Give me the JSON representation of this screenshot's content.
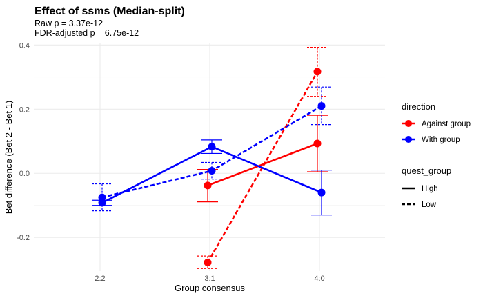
{
  "chart_data": {
    "type": "line",
    "title": "Effect of ssms (Median-split)",
    "subtitle_lines": [
      "Raw p = 3.37e-12",
      "FDR-adjusted p = 6.75e-12"
    ],
    "xlabel": "Group consensus",
    "ylabel": "Bet difference (Bet 2 - Bet 1)",
    "categories": [
      "2:2",
      "3:1",
      "4:0"
    ],
    "ylim": [
      -0.305,
      0.405
    ],
    "yticks": [
      -0.2,
      0.0,
      0.2,
      0.4
    ],
    "ytick_labels": [
      "-0.2",
      "0.0",
      "0.2",
      "0.4"
    ],
    "grid": true,
    "legend_position": "right",
    "legends": {
      "color": {
        "title": "direction",
        "entries": [
          "Against group",
          "With group"
        ]
      },
      "linetype": {
        "title": "quest_group",
        "entries": [
          "High",
          "Low"
        ]
      }
    },
    "colors": {
      "Against group": "#ff0000",
      "With group": "#0000ff"
    },
    "series": [
      {
        "direction": "Against group",
        "quest_group": "High",
        "values": [
          null,
          -0.038,
          0.093
        ],
        "error_low": [
          null,
          -0.089,
          0.005
        ],
        "error_high": [
          null,
          0.012,
          0.181
        ]
      },
      {
        "direction": "Against group",
        "quest_group": "Low",
        "values": [
          null,
          -0.278,
          0.317
        ],
        "error_low": [
          null,
          -0.297,
          0.24
        ],
        "error_high": [
          null,
          -0.258,
          0.393
        ]
      },
      {
        "direction": "With group",
        "quest_group": "High",
        "values": [
          -0.092,
          0.083,
          -0.06
        ],
        "error_low": [
          -0.1,
          0.062,
          -0.13
        ],
        "error_high": [
          -0.084,
          0.104,
          0.01
        ]
      },
      {
        "direction": "With group",
        "quest_group": "Low",
        "values": [
          -0.075,
          0.008,
          0.21
        ],
        "error_low": [
          -0.117,
          -0.018,
          0.152
        ],
        "error_high": [
          -0.033,
          0.034,
          0.269
        ]
      }
    ]
  }
}
